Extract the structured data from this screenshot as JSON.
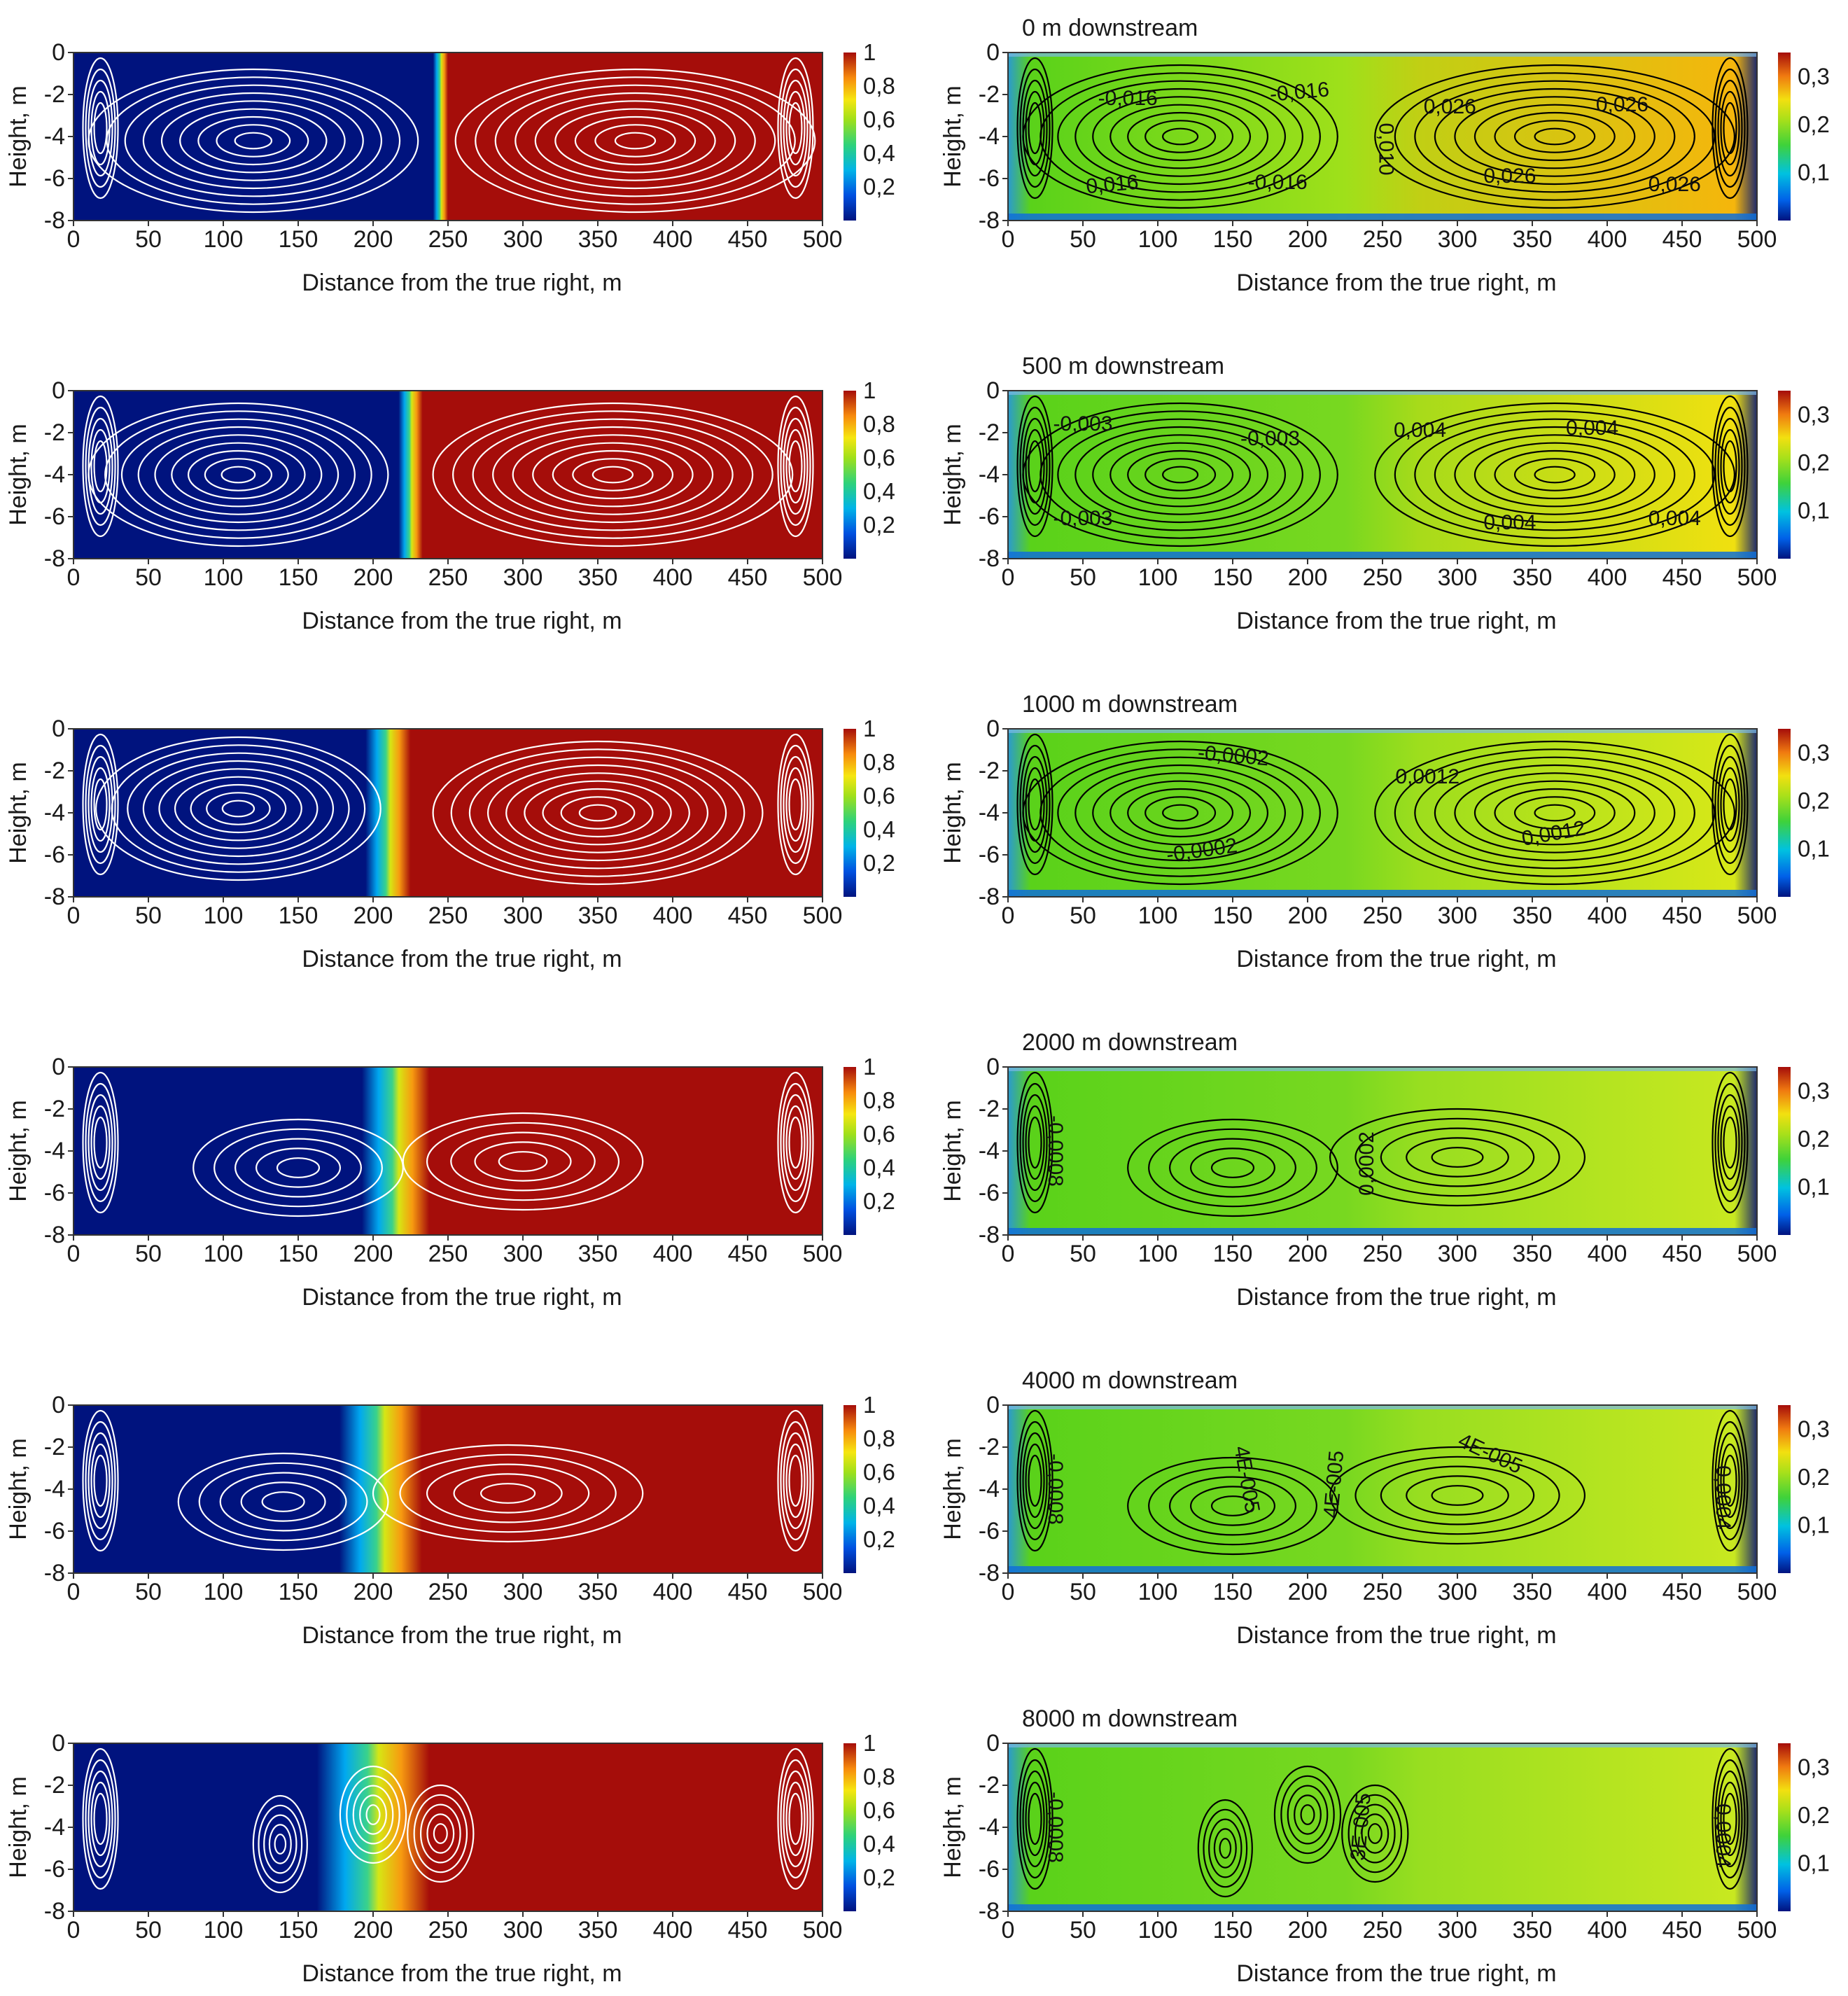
{
  "figure": {
    "xlabel": "Distance from the true right, m",
    "ylabel": "Height, m",
    "colors": {
      "left_bank": "#00137e",
      "right_bank": "#a50d0a",
      "contour_white": "#ffffff",
      "contour_black": "#000000",
      "speed_field_low": "#5ad21a",
      "speed_field_high": "#ffd000"
    }
  },
  "chart_data": [
    {
      "type": "heatmap",
      "panel": "mixing",
      "row": 0,
      "title": "",
      "xlabel": "Distance from the true right, m",
      "ylabel": "Height, m",
      "xlim": [
        0,
        500
      ],
      "ylim": [
        -8,
        0
      ],
      "xticks": [
        "0",
        "50",
        "100",
        "150",
        "200",
        "250",
        "300",
        "350",
        "400",
        "450",
        "500"
      ],
      "yticks": [
        "0",
        "-2",
        "-4",
        "-6",
        "-8"
      ],
      "colorbar": {
        "ticks": [
          "1",
          "0,8",
          "0,6",
          "0,4",
          "0,2"
        ],
        "range": [
          0,
          1
        ]
      },
      "front_x": 245,
      "front_width": 10,
      "contour_color": "white",
      "cells": [
        {
          "x": 120,
          "y": -4.2,
          "rx": 110
        },
        {
          "x": 375,
          "y": -4.2,
          "rx": 120
        }
      ]
    },
    {
      "type": "heatmap",
      "panel": "speed",
      "row": 0,
      "title": "0 m downstream",
      "xlabel": "Distance from the true right, m",
      "ylabel": "Height, m",
      "xlim": [
        0,
        500
      ],
      "ylim": [
        -8,
        0
      ],
      "xticks": [
        "0",
        "50",
        "100",
        "150",
        "200",
        "250",
        "300",
        "350",
        "400",
        "450",
        "500"
      ],
      "yticks": [
        "0",
        "-2",
        "-4",
        "-6",
        "-8"
      ],
      "colorbar": {
        "ticks": [
          "0,3",
          "0,2",
          "0,1"
        ],
        "range": [
          0,
          0.35
        ]
      },
      "contour_color": "black",
      "contour_labels": [
        {
          "text": "-0,016",
          "x": 80,
          "y": -2.5,
          "angle": 0
        },
        {
          "text": "-0,016",
          "x": 195,
          "y": -2.2,
          "angle": -5
        },
        {
          "text": "0,016",
          "x": 70,
          "y": -6.6,
          "angle": -5
        },
        {
          "text": "-0,016",
          "x": 180,
          "y": -6.5,
          "angle": 0
        },
        {
          "text": "0,010",
          "x": 248,
          "y": -4.6,
          "angle": 90
        },
        {
          "text": "0,026",
          "x": 295,
          "y": -2.9,
          "angle": 0
        },
        {
          "text": "0,026",
          "x": 410,
          "y": -2.8,
          "angle": 0
        },
        {
          "text": "0,026",
          "x": 335,
          "y": -6.2,
          "angle": 0
        },
        {
          "text": "0,026",
          "x": 445,
          "y": -6.6,
          "angle": 0
        }
      ]
    },
    {
      "type": "heatmap",
      "panel": "mixing",
      "row": 1,
      "title": "",
      "xlabel": "Distance from the true right, m",
      "ylabel": "Height, m",
      "xlim": [
        0,
        500
      ],
      "ylim": [
        -8,
        0
      ],
      "xticks": [
        "0",
        "50",
        "100",
        "150",
        "200",
        "250",
        "300",
        "350",
        "400",
        "450",
        "500"
      ],
      "yticks": [
        "0",
        "-2",
        "-4",
        "-6",
        "-8"
      ],
      "colorbar": {
        "ticks": [
          "1",
          "0,8",
          "0,6",
          "0,4",
          "0,2"
        ],
        "range": [
          0,
          1
        ]
      },
      "front_x": 225,
      "front_width": 16,
      "contour_color": "white",
      "cells": [
        {
          "x": 110,
          "y": -4.0,
          "rx": 100
        },
        {
          "x": 360,
          "y": -4.0,
          "rx": 120
        }
      ]
    },
    {
      "type": "heatmap",
      "panel": "speed",
      "row": 1,
      "title": "500 m downstream",
      "xlabel": "Distance from the true right, m",
      "ylabel": "Height, m",
      "xlim": [
        0,
        500
      ],
      "ylim": [
        -8,
        0
      ],
      "xticks": [
        "0",
        "50",
        "100",
        "150",
        "200",
        "250",
        "300",
        "350",
        "400",
        "450",
        "500"
      ],
      "yticks": [
        "0",
        "-2",
        "-4",
        "-6",
        "-8"
      ],
      "colorbar": {
        "ticks": [
          "0,3",
          "0,2",
          "0,1"
        ],
        "range": [
          0,
          0.35
        ]
      },
      "contour_color": "black",
      "contour_labels": [
        {
          "text": "-0,003",
          "x": 50,
          "y": -1.9,
          "angle": 0
        },
        {
          "text": "-0,003",
          "x": 175,
          "y": -2.6,
          "angle": 0
        },
        {
          "text": "-0,003",
          "x": 50,
          "y": -6.4,
          "angle": 0
        },
        {
          "text": "0,004",
          "x": 275,
          "y": -2.2,
          "angle": 0
        },
        {
          "text": "0,004",
          "x": 390,
          "y": -2.1,
          "angle": 0
        },
        {
          "text": "0,004",
          "x": 335,
          "y": -6.6,
          "angle": 0
        },
        {
          "text": "0,004",
          "x": 445,
          "y": -6.4,
          "angle": 0
        }
      ]
    },
    {
      "type": "heatmap",
      "panel": "mixing",
      "row": 2,
      "title": "",
      "xlabel": "Distance from the true right, m",
      "ylabel": "Height, m",
      "xlim": [
        0,
        500
      ],
      "ylim": [
        -8,
        0
      ],
      "xticks": [
        "0",
        "50",
        "100",
        "150",
        "200",
        "250",
        "300",
        "350",
        "400",
        "450",
        "500"
      ],
      "yticks": [
        "0",
        "-2",
        "-4",
        "-6",
        "-8"
      ],
      "colorbar": {
        "ticks": [
          "1",
          "0,8",
          "0,6",
          "0,4",
          "0,2"
        ],
        "range": [
          0,
          1
        ]
      },
      "front_x": 210,
      "front_width": 30,
      "contour_color": "white",
      "cells": [
        {
          "x": 110,
          "y": -3.8,
          "rx": 95
        },
        {
          "x": 350,
          "y": -4.0,
          "rx": 110
        }
      ]
    },
    {
      "type": "heatmap",
      "panel": "speed",
      "row": 2,
      "title": "1000 m downstream",
      "xlabel": "Distance from the true right, m",
      "ylabel": "Height, m",
      "xlim": [
        0,
        500
      ],
      "ylim": [
        -8,
        0
      ],
      "xticks": [
        "0",
        "50",
        "100",
        "150",
        "200",
        "250",
        "300",
        "350",
        "400",
        "450",
        "500"
      ],
      "yticks": [
        "0",
        "-2",
        "-4",
        "-6",
        "-8"
      ],
      "colorbar": {
        "ticks": [
          "0,3",
          "0,2",
          "0,1"
        ],
        "range": [
          0,
          0.35
        ]
      },
      "contour_color": "black",
      "contour_labels": [
        {
          "text": "-0,0002",
          "x": 150,
          "y": -1.6,
          "angle": 5
        },
        {
          "text": "-0,0002",
          "x": 130,
          "y": -6.1,
          "angle": -8
        },
        {
          "text": "0,0012",
          "x": 280,
          "y": -2.6,
          "angle": 0
        },
        {
          "text": "0,0012",
          "x": 365,
          "y": -5.3,
          "angle": -10
        }
      ]
    },
    {
      "type": "heatmap",
      "panel": "mixing",
      "row": 3,
      "title": "",
      "xlabel": "Distance from the true right, m",
      "ylabel": "Height, m",
      "xlim": [
        0,
        500
      ],
      "ylim": [
        -8,
        0
      ],
      "xticks": [
        "0",
        "50",
        "100",
        "150",
        "200",
        "250",
        "300",
        "350",
        "400",
        "450",
        "500"
      ],
      "yticks": [
        "0",
        "-2",
        "-4",
        "-6",
        "-8"
      ],
      "colorbar": {
        "ticks": [
          "1",
          "0,8",
          "0,6",
          "0,4",
          "0,2"
        ],
        "range": [
          0,
          1
        ]
      },
      "front_x": 215,
      "front_width": 45,
      "contour_color": "white",
      "cells": [
        {
          "x": 150,
          "y": -4.8,
          "rx": 70
        },
        {
          "x": 300,
          "y": -4.5,
          "rx": 80
        }
      ]
    },
    {
      "type": "heatmap",
      "panel": "speed",
      "row": 3,
      "title": "2000 m downstream",
      "xlabel": "Distance from the true right, m",
      "ylabel": "Height, m",
      "xlim": [
        0,
        500
      ],
      "ylim": [
        -8,
        0
      ],
      "xticks": [
        "0",
        "50",
        "100",
        "150",
        "200",
        "250",
        "300",
        "350",
        "400",
        "450",
        "500"
      ],
      "yticks": [
        "0",
        "-2",
        "-4",
        "-6",
        "-8"
      ],
      "colorbar": {
        "ticks": [
          "0,3",
          "0,2",
          "0,1"
        ],
        "range": [
          0,
          0.35
        ]
      },
      "contour_color": "black",
      "contour_labels": [
        {
          "text": "-0,0008",
          "x": 27,
          "y": -4.0,
          "angle": 90
        },
        {
          "text": "0,0002",
          "x": 244,
          "y": -4.6,
          "angle": -90
        }
      ]
    },
    {
      "type": "heatmap",
      "panel": "mixing",
      "row": 4,
      "title": "",
      "xlabel": "Distance from the true right, m",
      "ylabel": "Height, m",
      "xlim": [
        0,
        500
      ],
      "ylim": [
        -8,
        0
      ],
      "xticks": [
        "0",
        "50",
        "100",
        "150",
        "200",
        "250",
        "300",
        "350",
        "400",
        "450",
        "500"
      ],
      "yticks": [
        "0",
        "-2",
        "-4",
        "-6",
        "-8"
      ],
      "colorbar": {
        "ticks": [
          "1",
          "0,8",
          "0,6",
          "0,4",
          "0,2"
        ],
        "range": [
          0,
          1
        ]
      },
      "front_x": 205,
      "front_width": 55,
      "contour_color": "white",
      "cells": [
        {
          "x": 140,
          "y": -4.6,
          "rx": 70
        },
        {
          "x": 290,
          "y": -4.2,
          "rx": 90
        }
      ]
    },
    {
      "type": "heatmap",
      "panel": "speed",
      "row": 4,
      "title": "4000 m downstream",
      "xlabel": "Distance from the true right, m",
      "ylabel": "Height, m",
      "xlim": [
        0,
        500
      ],
      "ylim": [
        -8,
        0
      ],
      "xticks": [
        "0",
        "50",
        "100",
        "150",
        "200",
        "250",
        "300",
        "350",
        "400",
        "450",
        "500"
      ],
      "yticks": [
        "0",
        "-2",
        "-4",
        "-6",
        "-8"
      ],
      "colorbar": {
        "ticks": [
          "0,3",
          "0,2",
          "0,1"
        ],
        "range": [
          0,
          0.35
        ]
      },
      "contour_color": "black",
      "contour_labels": [
        {
          "text": "-0,0008",
          "x": 27,
          "y": -4.0,
          "angle": 90
        },
        {
          "text": "4E-005",
          "x": 155,
          "y": -3.6,
          "angle": 80
        },
        {
          "text": "4E-005",
          "x": 222,
          "y": -3.8,
          "angle": -85
        },
        {
          "text": "4E-005",
          "x": 320,
          "y": -2.6,
          "angle": 25
        },
        {
          "text": "0,0004",
          "x": 473,
          "y": -4.4,
          "angle": 90
        }
      ]
    },
    {
      "type": "heatmap",
      "panel": "mixing",
      "row": 5,
      "title": "",
      "xlabel": "Distance from the true right, m",
      "ylabel": "Height, m",
      "xlim": [
        0,
        500
      ],
      "ylim": [
        -8,
        0
      ],
      "xticks": [
        "0",
        "50",
        "100",
        "150",
        "200",
        "250",
        "300",
        "350",
        "400",
        "450",
        "500"
      ],
      "yticks": [
        "0",
        "-2",
        "-4",
        "-6",
        "-8"
      ],
      "colorbar": {
        "ticks": [
          "1",
          "0,8",
          "0,6",
          "0,4",
          "0,2"
        ],
        "range": [
          0,
          1
        ]
      },
      "front_x": 200,
      "front_width": 75,
      "contour_color": "white",
      "cells": [
        {
          "x": 138,
          "y": -4.8,
          "rx": 18
        },
        {
          "x": 200,
          "y": -3.4,
          "rx": 22
        },
        {
          "x": 245,
          "y": -4.3,
          "rx": 22
        }
      ]
    },
    {
      "type": "heatmap",
      "panel": "speed",
      "row": 5,
      "title": "8000 m downstream",
      "xlabel": "Distance from the true right, m",
      "ylabel": "Height, m",
      "xlim": [
        0,
        500
      ],
      "ylim": [
        -8,
        0
      ],
      "xticks": [
        "0",
        "50",
        "100",
        "150",
        "200",
        "250",
        "300",
        "350",
        "400",
        "450",
        "500"
      ],
      "yticks": [
        "0",
        "-2",
        "-4",
        "-6",
        "-8"
      ],
      "colorbar": {
        "ticks": [
          "0,3",
          "0,2",
          "0,1"
        ],
        "range": [
          0,
          0.35
        ]
      },
      "contour_color": "black",
      "contour_labels": [
        {
          "text": "-0,0008",
          "x": 27,
          "y": -4.0,
          "angle": 90
        },
        {
          "text": "3E-005",
          "x": 240,
          "y": -4.0,
          "angle": -85
        },
        {
          "text": "0,0004",
          "x": 473,
          "y": -4.4,
          "angle": 90
        }
      ]
    }
  ]
}
